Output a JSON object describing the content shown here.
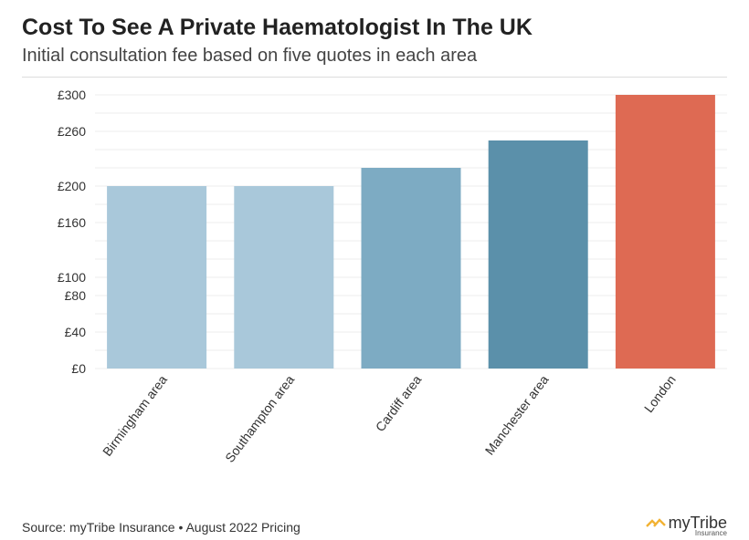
{
  "header": {
    "title": "Cost To See A Private Haematologist In The UK",
    "subtitle": "Initial consultation fee based on five quotes in each area"
  },
  "footer": {
    "source": "Source: myTribe Insurance • August 2022 Pricing",
    "logo_brand": "myTribe",
    "logo_sub": "Insurance",
    "logo_icon": "chevron-icon"
  },
  "chart_data": {
    "type": "bar",
    "title": "Cost To See A Private Haematologist In The UK",
    "subtitle": "Initial consultation fee based on five quotes in each area",
    "categories": [
      "Birmingham area",
      "Southampton area",
      "Cardiff area",
      "Manchester area",
      "London"
    ],
    "values": [
      200,
      200,
      220,
      250,
      300
    ],
    "ytick_values": [
      0,
      40,
      80,
      100,
      160,
      200,
      260,
      300
    ],
    "ytick_labels": [
      "£0",
      "£40",
      "£80",
      "£100",
      "£160",
      "£200",
      "£260",
      "£300"
    ],
    "ylim": [
      0,
      300
    ],
    "grid": true,
    "colors": [
      "#a9c8da",
      "#a9c8da",
      "#7dabc3",
      "#5b90aa",
      "#de6a53"
    ],
    "xlabel": "",
    "ylabel": ""
  }
}
